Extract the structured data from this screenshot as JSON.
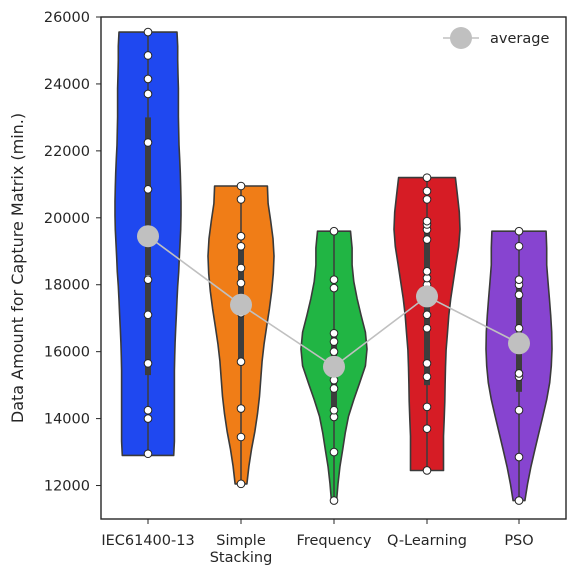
{
  "chart_data": {
    "type": "violin",
    "ylabel": "Data Amount for Capture Matrix (min.)",
    "xlabel": "",
    "ylim": [
      11000,
      26000
    ],
    "yticks": [
      12000,
      14000,
      16000,
      18000,
      20000,
      22000,
      24000,
      26000
    ],
    "ytick_labels": [
      "12000",
      "14000",
      "16000",
      "18000",
      "20000",
      "22000",
      "24000",
      "26000"
    ],
    "grid": false,
    "legend": {
      "position": "top-right",
      "label": "average"
    },
    "average_color": "#c0c0c0",
    "categories": [
      {
        "label_lines": [
          "IEC61400-13"
        ],
        "color": "#1f48f0",
        "min": 12900,
        "max": 25550,
        "q1": 15300,
        "median": 18200,
        "q3": 23000,
        "mean": 19450,
        "points": [
          12950,
          14000,
          14250,
          15650,
          17100,
          18150,
          19450,
          20850,
          22250,
          23700,
          24150,
          24850,
          25550
        ],
        "density": [
          0.78,
          0.8,
          0.8,
          0.8,
          0.8,
          0.8,
          0.8,
          0.81,
          0.82,
          0.84,
          0.86,
          0.88,
          0.9,
          0.93,
          0.95,
          0.97,
          0.99,
          1.0,
          1.0,
          0.99,
          0.98,
          0.96,
          0.94,
          0.93,
          0.92,
          0.92,
          0.92,
          0.91,
          0.9,
          0.9,
          0.88
        ]
      },
      {
        "label_lines": [
          "Simple",
          "Stacking"
        ],
        "color": "#f07d17",
        "min": 12050,
        "max": 20950,
        "q1": 15600,
        "median": 17500,
        "q3": 19200,
        "mean": 17400,
        "points": [
          12050,
          13450,
          14300,
          15700,
          17150,
          17500,
          18050,
          18500,
          19150,
          19450,
          20550,
          20950
        ],
        "density": [
          0.18,
          0.24,
          0.32,
          0.42,
          0.5,
          0.56,
          0.6,
          0.64,
          0.7,
          0.78,
          0.86,
          0.93,
          0.98,
          1.0,
          0.97,
          0.9,
          0.82,
          0.8
        ]
      },
      {
        "label_lines": [
          "Frequency"
        ],
        "color": "#21b544",
        "min": 11550,
        "max": 19600,
        "q1": 14200,
        "median": 15300,
        "q3": 16550,
        "mean": 15550,
        "points": [
          11550,
          13000,
          14050,
          14250,
          14900,
          15150,
          15450,
          16000,
          16300,
          16550,
          17900,
          18150,
          19600
        ],
        "density": [
          0.08,
          0.12,
          0.18,
          0.26,
          0.34,
          0.44,
          0.6,
          0.78,
          0.95,
          1.0,
          0.95,
          0.82,
          0.7,
          0.6,
          0.55,
          0.55,
          0.5
        ]
      },
      {
        "label_lines": [
          "Q-Learning"
        ],
        "color": "#d61c25",
        "min": 12450,
        "max": 21200,
        "q1": 15000,
        "median": 18000,
        "q3": 19700,
        "mean": 17650,
        "points": [
          12450,
          13700,
          14350,
          15250,
          15650,
          16700,
          17100,
          17650,
          18000,
          18200,
          18400,
          19350,
          19650,
          19800,
          19900,
          20550,
          20800,
          21200
        ],
        "density": [
          0.5,
          0.5,
          0.5,
          0.52,
          0.54,
          0.55,
          0.56,
          0.58,
          0.62,
          0.66,
          0.72,
          0.8,
          0.88,
          0.96,
          1.0,
          0.98,
          0.92,
          0.86
        ]
      },
      {
        "label_lines": [
          "PSO"
        ],
        "color": "#8744d0",
        "min": 11550,
        "max": 19600,
        "q1": 14800,
        "median": 16300,
        "q3": 17900,
        "mean": 16250,
        "points": [
          11550,
          12850,
          14250,
          15250,
          15350,
          16250,
          16700,
          17700,
          18000,
          18150,
          19150,
          19600
        ],
        "density": [
          0.18,
          0.26,
          0.36,
          0.48,
          0.6,
          0.72,
          0.84,
          0.93,
          0.98,
          1.0,
          0.99,
          0.96,
          0.92,
          0.88,
          0.84,
          0.84,
          0.82
        ]
      }
    ]
  }
}
